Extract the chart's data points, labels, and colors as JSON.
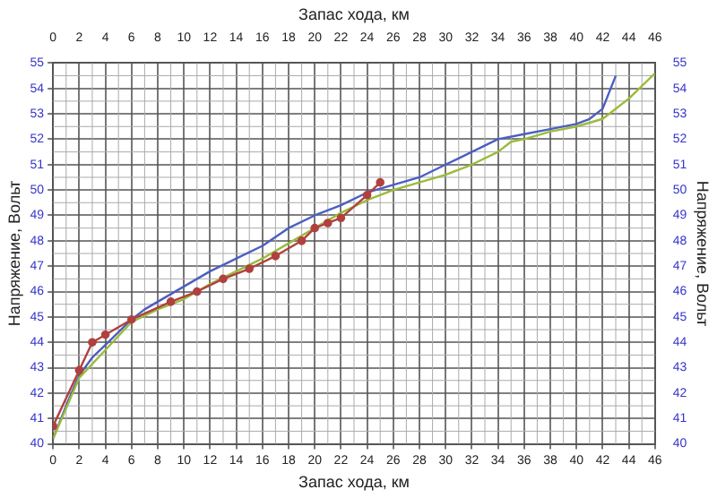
{
  "chart_data": {
    "type": "line",
    "xlabel": "Запас хода, км",
    "x2label": "Запас хода, км",
    "ylabel": "Напряжение, Вольт",
    "y2label": "Напряжение, Вольт",
    "xlim": [
      0,
      46
    ],
    "xticks": [
      0,
      2,
      4,
      6,
      8,
      10,
      12,
      14,
      16,
      18,
      20,
      22,
      24,
      26,
      28,
      30,
      32,
      34,
      36,
      38,
      40,
      42,
      44,
      46
    ],
    "x2lim": [
      0,
      46
    ],
    "x2ticks": [
      0,
      2,
      4,
      6,
      8,
      10,
      12,
      14,
      16,
      18,
      20,
      22,
      24,
      26,
      28,
      30,
      32,
      34,
      36,
      38,
      40,
      42,
      44,
      46
    ],
    "ylim": [
      40,
      55
    ],
    "yticks": [
      40,
      41,
      42,
      43,
      44,
      45,
      46,
      47,
      48,
      49,
      50,
      51,
      52,
      53,
      54,
      55
    ],
    "y2lim": [
      40,
      55
    ],
    "y2ticks": [
      40,
      41,
      42,
      43,
      44,
      45,
      46,
      47,
      48,
      49,
      50,
      51,
      52,
      53,
      54,
      55
    ],
    "grid": true,
    "legend": false,
    "line_style": "solid",
    "series": [
      {
        "color": "#4a5fc1",
        "marker": "none",
        "x": [
          0,
          1,
          2,
          3,
          4,
          5,
          6,
          7,
          8,
          10,
          12,
          14,
          16,
          18,
          20,
          22,
          24,
          26,
          28,
          30,
          32,
          34,
          36,
          38,
          40,
          41,
          42,
          43
        ],
        "values": [
          40.2,
          41.5,
          42.7,
          43.4,
          43.9,
          44.4,
          44.9,
          45.3,
          45.6,
          46.2,
          46.8,
          47.3,
          47.8,
          48.5,
          49.0,
          49.4,
          49.9,
          50.2,
          50.5,
          51.0,
          51.5,
          52.0,
          52.2,
          52.4,
          52.6,
          52.8,
          53.2,
          54.5
        ]
      },
      {
        "color": "#9bbb3b",
        "marker": "none",
        "x": [
          0,
          2,
          4,
          6,
          8,
          10,
          12,
          14,
          16,
          18,
          20,
          22,
          24,
          26,
          28,
          30,
          32,
          34,
          35,
          36,
          38,
          40,
          42,
          44,
          46
        ],
        "values": [
          40.2,
          42.6,
          43.7,
          44.8,
          45.3,
          45.7,
          46.3,
          46.8,
          47.3,
          47.9,
          48.5,
          49.1,
          49.6,
          50.0,
          50.3,
          50.6,
          51.0,
          51.5,
          51.9,
          52.0,
          52.3,
          52.5,
          52.8,
          53.6,
          54.6
        ]
      },
      {
        "color": "#b0413e",
        "marker": "circle",
        "x": [
          0,
          2,
          3,
          4,
          6,
          9,
          11,
          13,
          15,
          17,
          19,
          20,
          21,
          22,
          24,
          25
        ],
        "values": [
          40.7,
          42.9,
          44.0,
          44.3,
          44.9,
          45.6,
          46.0,
          46.5,
          46.9,
          47.4,
          48.0,
          48.5,
          48.7,
          48.9,
          49.8,
          50.3
        ]
      }
    ]
  }
}
